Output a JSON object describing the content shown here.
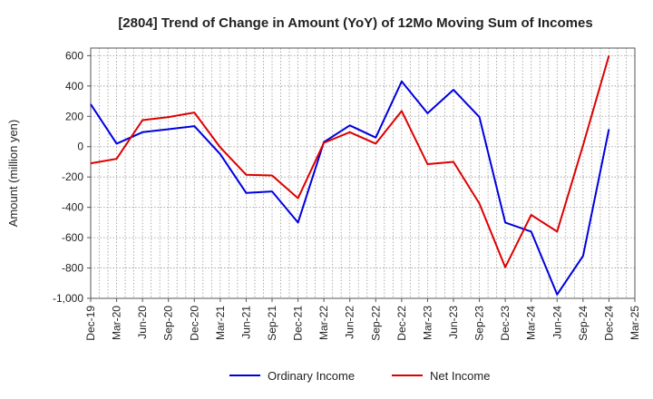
{
  "chart_data": {
    "type": "line",
    "title": "[2804]  Trend of Change in Amount (YoY) of 12Mo Moving Sum of Incomes",
    "xlabel": "",
    "ylabel": "Amount (million yen)",
    "ylim": [
      -1000,
      650
    ],
    "yticks": [
      -1000,
      -800,
      -600,
      -400,
      -200,
      0,
      200,
      400,
      600
    ],
    "ytick_labels": [
      "-1,000",
      "-800",
      "-600",
      "-400",
      "-200",
      "0",
      "200",
      "400",
      "600"
    ],
    "categories": [
      "Dec-19",
      "Mar-20",
      "Jun-20",
      "Sep-20",
      "Dec-20",
      "Mar-21",
      "Jun-21",
      "Sep-21",
      "Dec-21",
      "Mar-22",
      "Jun-22",
      "Sep-22",
      "Dec-22",
      "Mar-23",
      "Jun-23",
      "Sep-23",
      "Dec-23",
      "Mar-24",
      "Jun-24",
      "Sep-24",
      "Dec-24",
      "Mar-25"
    ],
    "grid": true,
    "legend_position": "bottom",
    "series": [
      {
        "name": "Ordinary Income",
        "color": "#0000dd",
        "values": [
          280,
          20,
          95,
          115,
          135,
          -50,
          -305,
          -295,
          -500,
          30,
          140,
          60,
          430,
          220,
          375,
          195,
          -500,
          -560,
          -975,
          -720,
          115,
          null
        ]
      },
      {
        "name": "Net Income",
        "color": "#dd0000",
        "values": [
          -110,
          -80,
          175,
          195,
          225,
          -5,
          -185,
          -190,
          -340,
          25,
          95,
          20,
          235,
          -115,
          -100,
          -375,
          -795,
          -450,
          -560,
          10,
          600,
          null
        ]
      }
    ]
  }
}
